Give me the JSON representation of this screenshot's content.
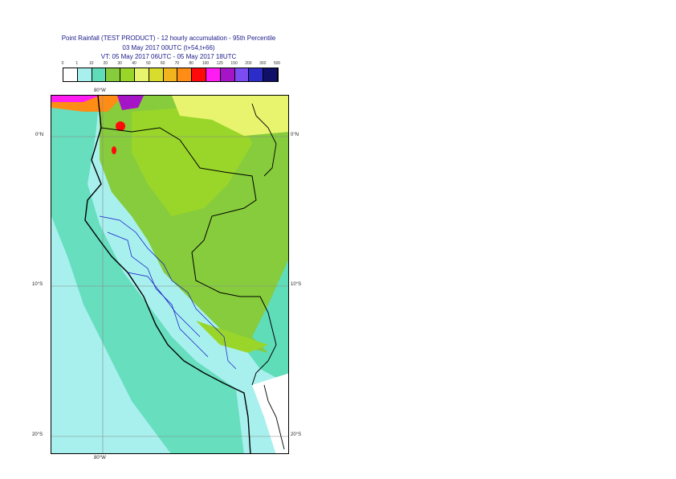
{
  "title": {
    "line1": "Point Rainfall (TEST PRODUCT) - 12 hourly accumulation - 95th Percentile",
    "line2": "03 May 2017 00UTC (t+54,t+66)",
    "line3": "VT: 05 May 2017 06UTC - 05 May 2017 18UTC"
  },
  "legend": {
    "labels": [
      "0",
      "1",
      "10",
      "20",
      "30",
      "40",
      "50",
      "60",
      "70",
      "80",
      "100",
      "125",
      "150",
      "200",
      "300",
      "500"
    ],
    "colors": [
      "#ffffff",
      "#a8f0ee",
      "#5fdcb8",
      "#86cc3c",
      "#9ad62a",
      "#e8f46e",
      "#d8dc2c",
      "#f2b41e",
      "#ff8c14",
      "#ff0a0a",
      "#ff1cf2",
      "#a614c8",
      "#7a4cf2",
      "#2c2cc8",
      "#101068"
    ]
  },
  "axes": {
    "lon_top": "80°W",
    "lon_bottom": "80°W",
    "lat_0_left": "0°N",
    "lat_0_right": "0°N",
    "lat_10_left": "10°S",
    "lat_10_right": "10°S",
    "lat_20_left": "20°S",
    "lat_20_right": "20°S"
  },
  "map_colors": {
    "ocean_low": "#a8f0ee",
    "ocean_mid": "#5fdcb8",
    "land_green": "#86cc3c",
    "land_light": "#9ad62a",
    "land_yellow": "#e8f46e",
    "hot": "#ff0a0a",
    "magenta": "#ff1cf2",
    "border_country": "#000000",
    "border_region": "#1010c8"
  }
}
